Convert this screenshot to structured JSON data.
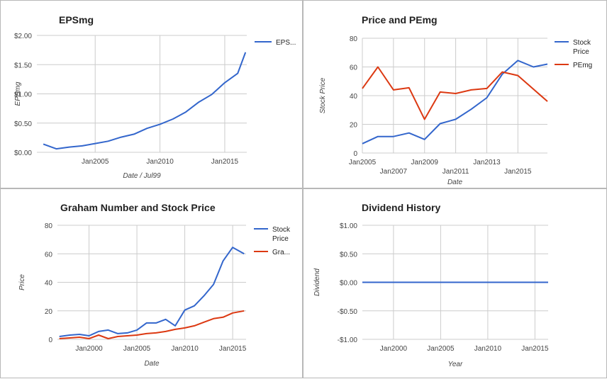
{
  "colors": {
    "blue": "#3366cc",
    "red": "#dc3912",
    "grid": "#cccccc",
    "text": "#222222"
  },
  "chart_data": [
    {
      "id": "eps",
      "type": "line",
      "title": "EPSmg",
      "xlabel": "Date / Jul99",
      "ylabel": "EPSmg",
      "x_ticks": [
        "Jan2005",
        "Jan2010",
        "Jan2015"
      ],
      "y_ticks": [
        "$0.00",
        "$0.50",
        "$1.00",
        "$1.50",
        "$2.00"
      ],
      "ylim": [
        0,
        2
      ],
      "xlim": [
        2000.5,
        2016.7
      ],
      "grid": true,
      "legend_position": "right",
      "x": [
        2001,
        2002,
        2003,
        2004,
        2005,
        2006,
        2007,
        2008,
        2009,
        2010,
        2011,
        2012,
        2013,
        2014,
        2015,
        2016,
        2016.6
      ],
      "series": [
        {
          "name": "EPS...",
          "color": "#3366cc",
          "values": [
            0.14,
            0.06,
            0.09,
            0.11,
            0.15,
            0.19,
            0.26,
            0.31,
            0.41,
            0.48,
            0.57,
            0.69,
            0.86,
            0.99,
            1.19,
            1.35,
            1.71
          ]
        }
      ]
    },
    {
      "id": "price_pe",
      "type": "line",
      "title": "Price and PEmg",
      "xlabel": "Date",
      "ylabel": "Stock Price",
      "x_ticks": [
        "Jan2005",
        "Jan2007",
        "Jan2009",
        "Jan2011",
        "Jan2013",
        "Jan2015"
      ],
      "y_ticks": [
        "0",
        "20",
        "40",
        "60",
        "80"
      ],
      "ylim": [
        0,
        80
      ],
      "xlim": [
        2005,
        2016.9
      ],
      "grid": true,
      "legend_position": "right",
      "x": [
        2005,
        2006,
        2007,
        2008,
        2009,
        2010,
        2011,
        2012,
        2013,
        2014,
        2015,
        2016,
        2016.9
      ],
      "series": [
        {
          "name": "Stock Price",
          "color": "#3366cc",
          "values": [
            6.5,
            11.5,
            11.5,
            14,
            9.5,
            20.5,
            23.5,
            30.5,
            38.5,
            55,
            64.5,
            60,
            62
          ]
        },
        {
          "name": "PEmg",
          "color": "#dc3912",
          "values": [
            45,
            60,
            44,
            45.5,
            23.5,
            42.5,
            41.5,
            44,
            45,
            56.5,
            54,
            44.5,
            36
          ]
        }
      ]
    },
    {
      "id": "graham",
      "type": "line",
      "title": "Graham Number and Stock Price",
      "xlabel": "Date",
      "ylabel": "Price",
      "x_ticks": [
        "Jan2000",
        "Jan2005",
        "Jan2010",
        "Jan2015"
      ],
      "y_ticks": [
        "0",
        "20",
        "40",
        "60",
        "80"
      ],
      "ylim": [
        0,
        80
      ],
      "xlim": [
        1996.7,
        2016.4
      ],
      "grid": true,
      "legend_position": "right",
      "x": [
        1996.9,
        1998,
        1999,
        2000,
        2001,
        2002,
        2003,
        2004,
        2005,
        2006,
        2007,
        2008,
        2009,
        2010,
        2011,
        2012,
        2013,
        2014,
        2015,
        2016.2
      ],
      "series": [
        {
          "name": "Stock Price",
          "color": "#3366cc",
          "values": [
            2,
            3,
            3.5,
            2.5,
            5.5,
            6.5,
            4,
            4.5,
            6.5,
            11.5,
            11.5,
            14,
            9.5,
            20.5,
            23.5,
            30.5,
            38.5,
            55,
            64.5,
            60
          ]
        },
        {
          "name": "Gra...",
          "color": "#dc3912",
          "values": [
            0.5,
            1,
            1.5,
            0.5,
            3,
            0.5,
            2,
            2.5,
            3,
            4,
            4.5,
            5.5,
            7,
            8,
            9.5,
            12,
            14.5,
            15.5,
            18.5,
            20
          ]
        }
      ]
    },
    {
      "id": "dividend",
      "type": "line",
      "title": "Dividend History",
      "xlabel": "Year",
      "ylabel": "Dividend",
      "x_ticks": [
        "Jan2000",
        "Jan2005",
        "Jan2010",
        "Jan2015"
      ],
      "y_ticks": [
        "-$1.00",
        "-$0.50",
        "$0.00",
        "$0.50",
        "$1.00"
      ],
      "ylim": [
        -1,
        1
      ],
      "xlim": [
        1996.7,
        2016.4
      ],
      "grid": true,
      "legend_position": "none",
      "x": [
        1996.7,
        2016.4
      ],
      "series": [
        {
          "color": "#3366cc",
          "values": [
            0,
            0
          ]
        }
      ]
    }
  ]
}
